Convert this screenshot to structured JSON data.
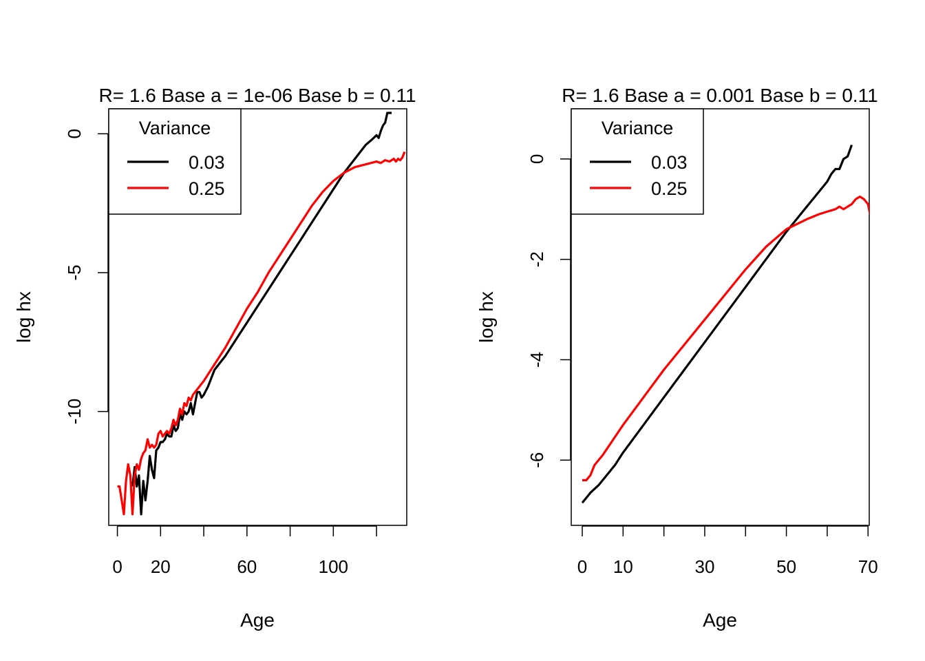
{
  "chart_data": [
    {
      "type": "line",
      "title": "R= 1.6 Base a = 1e-06 Base b = 0.11",
      "xlabel": "Age",
      "ylabel": "log hx",
      "xlim": [
        -4,
        134
      ],
      "ylim": [
        -14.1,
        0.9
      ],
      "x_ticks": [
        0,
        20,
        40,
        60,
        80,
        100,
        120
      ],
      "x_tick_labels": [
        "0",
        "20",
        "",
        "60",
        "",
        "100",
        ""
      ],
      "y_ticks": [
        0,
        -5,
        -10
      ],
      "y_tick_labels": [
        "0",
        "-5",
        "-10"
      ],
      "grid": false,
      "legend": {
        "title": "Variance",
        "placement": "top-left",
        "entries": [
          {
            "label": "0.03",
            "color": "#000000"
          },
          {
            "label": "0.25",
            "color": "#ff0000"
          }
        ]
      },
      "series": [
        {
          "name": "0.03",
          "color": "#000000",
          "x": [
            7,
            8,
            9,
            10,
            11,
            12,
            13,
            14,
            15,
            16,
            17,
            18,
            19,
            20,
            21,
            22,
            23,
            24,
            25,
            26,
            27,
            28,
            29,
            30,
            31,
            32,
            33,
            34,
            35,
            36,
            37,
            38,
            39,
            40,
            42,
            45,
            50,
            55,
            60,
            65,
            70,
            75,
            80,
            85,
            90,
            95,
            100,
            105,
            110,
            115,
            118,
            120,
            121,
            122,
            123,
            124,
            125,
            126,
            127
          ],
          "y": [
            -12.7,
            -12.0,
            -12.7,
            -12.3,
            -13.7,
            -12.5,
            -13.2,
            -12.5,
            -11.6,
            -12.1,
            -12.4,
            -11.4,
            -11.3,
            -11.1,
            -11.1,
            -11.0,
            -10.8,
            -10.9,
            -10.9,
            -10.5,
            -10.7,
            -10.6,
            -10.1,
            -10.3,
            -10.0,
            -10.1,
            -10.0,
            -9.7,
            -10.1,
            -9.7,
            -9.3,
            -9.3,
            -9.5,
            -9.4,
            -9.1,
            -8.5,
            -8.0,
            -7.4,
            -6.8,
            -6.2,
            -5.6,
            -5.0,
            -4.4,
            -3.8,
            -3.2,
            -2.6,
            -2.0,
            -1.4,
            -0.9,
            -0.4,
            -0.2,
            -0.05,
            -0.15,
            0.1,
            0.3,
            0.4,
            0.75,
            0.75,
            0.75
          ]
        },
        {
          "name": "0.25",
          "color": "#ff0000",
          "x": [
            0,
            1,
            3,
            4,
            5,
            6,
            7,
            8,
            9,
            10,
            11,
            12,
            13,
            14,
            15,
            16,
            17,
            18,
            19,
            20,
            21,
            22,
            23,
            24,
            25,
            26,
            27,
            28,
            29,
            30,
            31,
            32,
            33,
            34,
            35,
            36,
            38,
            40,
            45,
            50,
            55,
            60,
            65,
            70,
            75,
            80,
            85,
            90,
            95,
            100,
            105,
            110,
            115,
            120,
            122,
            124,
            126,
            128,
            129,
            130,
            131,
            132,
            133
          ],
          "y": [
            -12.7,
            -12.7,
            -13.7,
            -12.5,
            -11.9,
            -12.3,
            -13.7,
            -12.3,
            -11.9,
            -12.1,
            -11.7,
            -11.5,
            -11.4,
            -11.0,
            -11.3,
            -11.2,
            -11.3,
            -11.2,
            -10.8,
            -10.7,
            -10.9,
            -10.8,
            -10.7,
            -10.8,
            -10.6,
            -10.3,
            -10.5,
            -10.3,
            -9.9,
            -10.1,
            -9.7,
            -9.8,
            -9.5,
            -9.6,
            -9.4,
            -9.3,
            -9.1,
            -8.9,
            -8.3,
            -7.7,
            -7.0,
            -6.3,
            -5.7,
            -5.0,
            -4.4,
            -3.8,
            -3.2,
            -2.6,
            -2.1,
            -1.7,
            -1.4,
            -1.2,
            -1.1,
            -1.0,
            -1.05,
            -0.95,
            -1.0,
            -0.9,
            -1.0,
            -0.9,
            -0.95,
            -0.85,
            -0.65
          ]
        }
      ]
    },
    {
      "type": "line",
      "title": "R= 1.6 Base a = 0.001 Base b = 0.11",
      "xlabel": "Age",
      "ylabel": "log hx",
      "xlim": [
        -2.7,
        70.3
      ],
      "ylim": [
        -7.3,
        1.0
      ],
      "x_ticks": [
        0,
        10,
        20,
        30,
        40,
        50,
        60,
        70
      ],
      "x_tick_labels": [
        "0",
        "10",
        "",
        "30",
        "",
        "50",
        "",
        "70"
      ],
      "y_ticks": [
        0,
        -2,
        -4,
        -6
      ],
      "y_tick_labels": [
        "0",
        "-2",
        "-4",
        "-6"
      ],
      "grid": false,
      "legend": {
        "title": "Variance",
        "placement": "top-left",
        "entries": [
          {
            "label": "0.03",
            "color": "#000000"
          },
          {
            "label": "0.25",
            "color": "#ff0000"
          }
        ]
      },
      "series": [
        {
          "name": "0.03",
          "color": "#000000",
          "x": [
            0,
            2,
            4,
            6,
            8,
            10,
            15,
            20,
            25,
            30,
            35,
            40,
            45,
            50,
            55,
            57,
            59,
            60,
            61,
            62,
            63,
            64,
            65,
            66
          ],
          "y": [
            -6.85,
            -6.65,
            -6.5,
            -6.3,
            -6.1,
            -5.85,
            -5.3,
            -4.75,
            -4.2,
            -3.65,
            -3.1,
            -2.55,
            -2.0,
            -1.45,
            -0.95,
            -0.75,
            -0.55,
            -0.45,
            -0.3,
            -0.2,
            -0.2,
            0.0,
            0.05,
            0.28
          ]
        },
        {
          "name": "0.25",
          "color": "#ff0000",
          "x": [
            0,
            1,
            2,
            3,
            4,
            5,
            10,
            15,
            20,
            25,
            30,
            35,
            40,
            45,
            50,
            55,
            58,
            60,
            62,
            63,
            64,
            65,
            66,
            67,
            68,
            69,
            70,
            71
          ],
          "y": [
            -6.4,
            -6.4,
            -6.3,
            -6.1,
            -6.0,
            -5.9,
            -5.3,
            -4.75,
            -4.2,
            -3.7,
            -3.2,
            -2.7,
            -2.2,
            -1.75,
            -1.4,
            -1.2,
            -1.1,
            -1.05,
            -1.0,
            -0.95,
            -1.0,
            -0.95,
            -0.9,
            -0.8,
            -0.75,
            -0.8,
            -0.9,
            -1.3
          ]
        }
      ]
    }
  ]
}
